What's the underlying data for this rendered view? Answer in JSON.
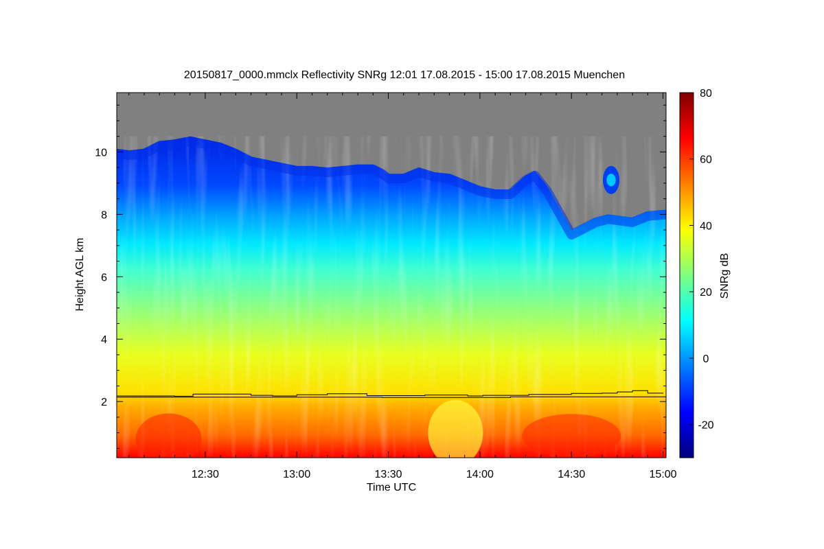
{
  "chart_data": {
    "type": "heatmap",
    "title": "20150817_0000.mmclx Reflectivity SNRg   12:01 17.08.2015 - 15:00 17.08.2015 Muenchen",
    "xlabel": "Time UTC",
    "ylabel": "Height AGL km",
    "colorbar_label": "SNRg dB",
    "x_range_minutes_utc": [
      721,
      901
    ],
    "y_range_km": [
      0.2,
      11.9
    ],
    "x_ticks": [
      {
        "label": "12:30",
        "minutes": 750
      },
      {
        "label": "13:00",
        "minutes": 780
      },
      {
        "label": "13:30",
        "minutes": 810
      },
      {
        "label": "14:00",
        "minutes": 840
      },
      {
        "label": "14:30",
        "minutes": 870
      },
      {
        "label": "15:00",
        "minutes": 900
      }
    ],
    "y_ticks": [
      {
        "label": "2",
        "value": 2
      },
      {
        "label": "4",
        "value": 4
      },
      {
        "label": "6",
        "value": 6
      },
      {
        "label": "8",
        "value": 8
      },
      {
        "label": "10",
        "value": 10
      }
    ],
    "colorbar_range_db": [
      -30,
      80
    ],
    "colorbar_ticks": [
      {
        "label": "80",
        "value": 80
      },
      {
        "label": "60",
        "value": 60
      },
      {
        "label": "40",
        "value": 40
      },
      {
        "label": "20",
        "value": 20
      },
      {
        "label": "0",
        "value": 0
      },
      {
        "label": "-20",
        "value": -20
      }
    ],
    "colormap_stops": [
      "#00007f",
      "#0000ff",
      "#007fff",
      "#00ffff",
      "#7fff7f",
      "#ffff00",
      "#ff7f00",
      "#ff0000",
      "#7f0000"
    ],
    "no_signal_color": "#808080",
    "cloud_top_km": [
      [
        721,
        10.1
      ],
      [
        725,
        10.05
      ],
      [
        730,
        10.1
      ],
      [
        735,
        10.35
      ],
      [
        740,
        10.4
      ],
      [
        745,
        10.5
      ],
      [
        750,
        10.4
      ],
      [
        755,
        10.3
      ],
      [
        760,
        10.1
      ],
      [
        765,
        9.85
      ],
      [
        770,
        9.75
      ],
      [
        775,
        9.65
      ],
      [
        780,
        9.55
      ],
      [
        785,
        9.55
      ],
      [
        790,
        9.5
      ],
      [
        795,
        9.55
      ],
      [
        800,
        9.6
      ],
      [
        805,
        9.6
      ],
      [
        808,
        9.45
      ],
      [
        810,
        9.3
      ],
      [
        815,
        9.3
      ],
      [
        820,
        9.5
      ],
      [
        825,
        9.35
      ],
      [
        830,
        9.3
      ],
      [
        835,
        9.1
      ],
      [
        840,
        8.9
      ],
      [
        845,
        8.8
      ],
      [
        850,
        8.8
      ],
      [
        855,
        9.25
      ],
      [
        858,
        9.4
      ],
      [
        862,
        8.9
      ],
      [
        866,
        8.2
      ],
      [
        870,
        7.5
      ],
      [
        874,
        7.7
      ],
      [
        878,
        7.9
      ],
      [
        882,
        8.0
      ],
      [
        886,
        7.95
      ],
      [
        890,
        7.9
      ],
      [
        895,
        8.1
      ],
      [
        901,
        8.15
      ]
    ],
    "detached_cloud_km": [
      {
        "center_minutes": 883,
        "center_height": 9.1,
        "half_width_minutes": 2.7,
        "half_height_km": 0.45
      }
    ],
    "boundary_layer_line_1_km": [
      [
        721,
        2.18
      ],
      [
        740,
        2.17
      ],
      [
        746,
        2.24
      ],
      [
        765,
        2.2
      ],
      [
        772,
        2.18
      ],
      [
        780,
        2.22
      ],
      [
        790,
        2.25
      ],
      [
        803,
        2.19
      ],
      [
        822,
        2.21
      ],
      [
        836,
        2.18
      ],
      [
        841,
        2.2
      ],
      [
        856,
        2.23
      ],
      [
        870,
        2.26
      ],
      [
        880,
        2.27
      ],
      [
        885,
        2.31
      ],
      [
        890,
        2.35
      ],
      [
        895,
        2.27
      ],
      [
        900,
        2.26
      ]
    ],
    "boundary_layer_line_2_km": [
      [
        721,
        2.14
      ],
      [
        760,
        2.14
      ],
      [
        808,
        2.13
      ],
      [
        850,
        2.15
      ],
      [
        901,
        2.15
      ]
    ]
  }
}
